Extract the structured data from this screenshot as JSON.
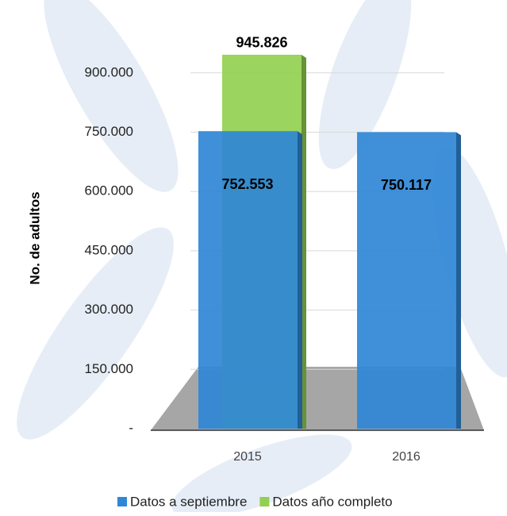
{
  "chart_data": {
    "type": "bar",
    "y_label": "No. de adultos",
    "categories": [
      "2015",
      "2016"
    ],
    "series": [
      {
        "name": "Datos a septiembre",
        "color": "#2f87d6",
        "values": [
          752553,
          750117
        ],
        "value_labels": [
          "752.553",
          "750.117"
        ]
      },
      {
        "name": "Datos año completo",
        "color": "#92d050",
        "values": [
          945826,
          null
        ],
        "value_labels": [
          "945.826",
          null
        ]
      }
    ],
    "ylim": [
      0,
      1000000
    ],
    "yticks": [
      {
        "value": 0,
        "label": "-"
      },
      {
        "value": 150000,
        "label": "150.000"
      },
      {
        "value": 300000,
        "label": "300.000"
      },
      {
        "value": 450000,
        "label": "450.000"
      },
      {
        "value": 600000,
        "label": "600.000"
      },
      {
        "value": 750000,
        "label": "750.000"
      },
      {
        "value": 900000,
        "label": "900.000"
      }
    ],
    "grid": true,
    "legend": "bottom-right"
  }
}
